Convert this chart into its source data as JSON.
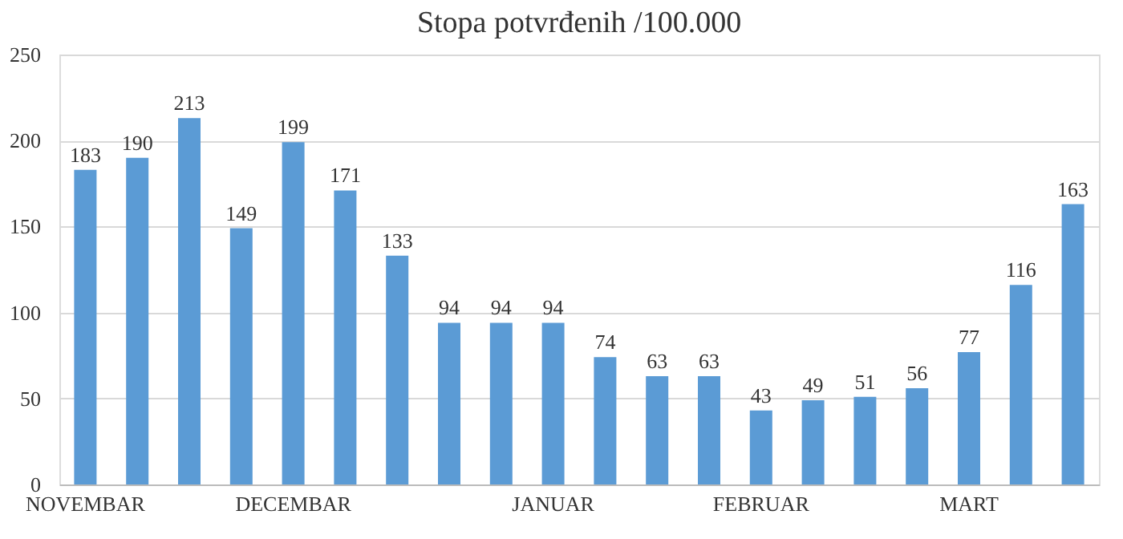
{
  "chart_data": {
    "type": "bar",
    "title": "Stopa potvrđenih /100.000",
    "categories": [
      "NOVEMBAR",
      null,
      null,
      null,
      "DECEMBAR",
      null,
      null,
      null,
      null,
      "JANUAR",
      null,
      null,
      null,
      "FEBRUAR",
      null,
      null,
      null,
      "MART",
      null,
      null
    ],
    "values": [
      183,
      190,
      213,
      149,
      199,
      171,
      133,
      94,
      94,
      94,
      74,
      63,
      63,
      43,
      49,
      51,
      56,
      77,
      116,
      163
    ],
    "color": "#5b9bd5",
    "ylim": [
      0,
      250
    ],
    "yticks": [
      0,
      50,
      100,
      150,
      200,
      250
    ],
    "grid": "y",
    "data_labels": true
  }
}
